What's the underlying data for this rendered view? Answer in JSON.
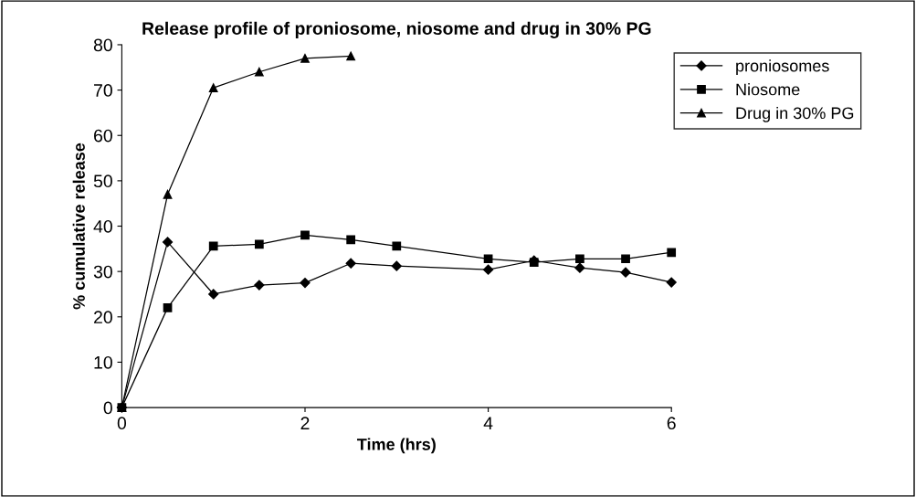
{
  "chart_data": {
    "type": "line",
    "title": "Release profile of proniosome, niosome and drug in 30% PG",
    "xlabel": "Time (hrs)",
    "ylabel": "% cumulative release",
    "xlim": [
      0,
      6
    ],
    "xticks": [
      0,
      2,
      4,
      6
    ],
    "ylim": [
      0,
      80
    ],
    "yticks": [
      0,
      10,
      20,
      30,
      40,
      50,
      60,
      70,
      80
    ],
    "grid": false,
    "legend": "top right",
    "line_style": "solid",
    "series": [
      {
        "name": "proniosomes",
        "color": "#000000",
        "marker": "diamond",
        "x": [
          0,
          0.5,
          1,
          1.5,
          2,
          2.5,
          3,
          4,
          4.5,
          5,
          5.5,
          6
        ],
        "values": [
          0,
          36.5,
          25,
          27,
          27.5,
          31.8,
          31.2,
          30.4,
          32.4,
          30.8,
          29.8,
          27.6
        ]
      },
      {
        "name": "Niosome",
        "color": "#000000",
        "marker": "square",
        "x": [
          0,
          0.5,
          1,
          1.5,
          2,
          2.5,
          3,
          4,
          4.5,
          5,
          5.5,
          6
        ],
        "values": [
          0,
          22,
          35.6,
          36,
          38,
          37,
          35.6,
          32.8,
          32,
          32.8,
          32.8,
          34.2
        ]
      },
      {
        "name": "Drug in 30% PG",
        "color": "#000000",
        "marker": "triangle",
        "x": [
          0,
          0.5,
          1,
          1.5,
          2,
          2.5
        ],
        "values": [
          0,
          47,
          70.5,
          74,
          77,
          77.5
        ]
      }
    ]
  }
}
